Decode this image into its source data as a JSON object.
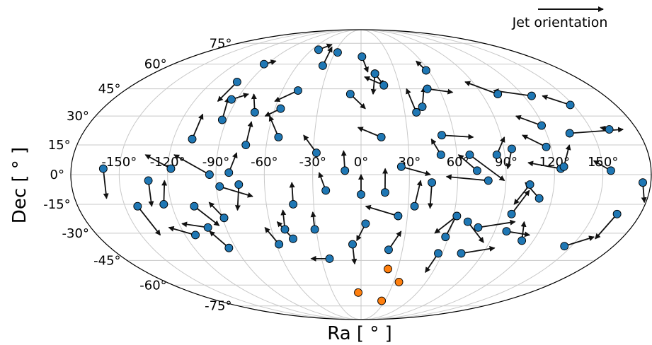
{
  "chart_data": {
    "type": "scatter",
    "projection": "mollweide",
    "xlabel": "Ra [ ° ]",
    "ylabel": "Dec [ ° ]",
    "x_ticks": [
      "-150°",
      "-120°",
      "-90°",
      "-60°",
      "-30°",
      "0°",
      "30°",
      "60°",
      "90°",
      "120°",
      "150°"
    ],
    "y_ticks": [
      "75°",
      "60°",
      "45°",
      "30°",
      "15°",
      "0°",
      "-15°",
      "-30°",
      "-45°",
      "-60°",
      "-75°"
    ],
    "grid": true,
    "legend": {
      "label": "Jet orientation",
      "placement": "top-right"
    },
    "colors": {
      "blue": "#1f77b4",
      "orange": "#ff7f0e",
      "arrow": "#111111",
      "grid": "#c8c8c8"
    },
    "sources_with_jet": [
      {
        "ra": -160,
        "dec": 3,
        "jet": [
          -160,
          -12
        ]
      },
      {
        "ra": -142,
        "dec": -16,
        "jet": [
          -137,
          -31
        ]
      },
      {
        "ra": -132,
        "dec": -3,
        "jet": [
          -133,
          -16
        ]
      },
      {
        "ra": -125,
        "dec": -15,
        "jet": [
          -122,
          -3
        ]
      },
      {
        "ra": -118,
        "dec": 3,
        "jet": [
          -135,
          10
        ]
      },
      {
        "ra": -113,
        "dec": -31,
        "jet": [
          -128,
          -27
        ]
      },
      {
        "ra": -106,
        "dec": -16,
        "jet": [
          -94,
          -26
        ]
      },
      {
        "ra": -102,
        "dec": -27,
        "jet": [
          -118,
          -25
        ]
      },
      {
        "ra": -95,
        "dec": -38,
        "jet": [
          -102,
          -29
        ]
      },
      {
        "ra": -94,
        "dec": 0,
        "jet": [
          -117,
          10
        ]
      },
      {
        "ra": -108,
        "dec": 18,
        "jet": [
          -108,
          31
        ]
      },
      {
        "ra": -93,
        "dec": 28,
        "jet": [
          -97,
          40
        ]
      },
      {
        "ra": -100,
        "dec": 49,
        "jet": [
          -103,
          38
        ]
      },
      {
        "ra": -93,
        "dec": 60,
        "jet": [
          -85,
          62
        ]
      },
      {
        "ra": -94,
        "dec": 39,
        "jet": [
          -84,
          42
        ]
      },
      {
        "ra": -73,
        "dec": 32,
        "jet": [
          -80,
          42
        ]
      },
      {
        "ra": -82,
        "dec": 1,
        "jet": [
          -78,
          11
        ]
      },
      {
        "ra": -73,
        "dec": 15,
        "jet": [
          -73,
          27
        ]
      },
      {
        "ra": -88,
        "dec": -6,
        "jet": [
          -68,
          -11
        ]
      },
      {
        "ra": -76,
        "dec": -5,
        "jet": [
          -79,
          -18
        ]
      },
      {
        "ra": -89,
        "dec": -22,
        "jet": [
          -96,
          -14
        ]
      },
      {
        "ra": -58,
        "dec": -36,
        "jet": [
          -64,
          -27
        ]
      },
      {
        "ra": -51,
        "dec": -28,
        "jet": [
          -50,
          -18
        ]
      },
      {
        "ra": -47,
        "dec": -33,
        "jet": [
          -55,
          -24
        ]
      },
      {
        "ra": -53,
        "dec": 19,
        "jet": [
          -62,
          30
        ]
      },
      {
        "ra": -48,
        "dec": 44,
        "jet": [
          -62,
          38
        ]
      },
      {
        "ra": -56,
        "dec": 34,
        "jet": [
          -65,
          30
        ]
      },
      {
        "ra": -36,
        "dec": 59,
        "jet": [
          -38,
          72
        ]
      },
      {
        "ra": -52,
        "dec": 70,
        "jet": [
          -41,
          74
        ]
      },
      {
        "ra": -27,
        "dec": 68,
        "jet": [
          -28,
          66
        ]
      },
      {
        "ra": -28,
        "dec": 11,
        "jet": [
          -37,
          20
        ]
      },
      {
        "ra": -43,
        "dec": -15,
        "jet": [
          -43,
          -4
        ]
      },
      {
        "ra": -22,
        "dec": -8,
        "jet": [
          -26,
          1
        ]
      },
      {
        "ra": -24,
        "dec": -44,
        "jet": [
          -38,
          -44
        ]
      },
      {
        "ra": -31,
        "dec": -28,
        "jet": [
          -31,
          -19
        ]
      },
      {
        "ra": -10,
        "dec": 2,
        "jet": [
          -11,
          12
        ]
      },
      {
        "ra": -8,
        "dec": 42,
        "jet": [
          3,
          34
        ]
      },
      {
        "ra": 13,
        "dec": 19,
        "jet": [
          -2,
          24
        ]
      },
      {
        "ra": 1,
        "dec": 65,
        "jet": [
          6,
          55
        ]
      },
      {
        "ra": 0,
        "dec": -10,
        "jet": [
          0,
          0
        ]
      },
      {
        "ra": 12,
        "dec": 54,
        "jet": [
          18,
          47
        ]
      },
      {
        "ra": 18,
        "dec": 47,
        "jet": [
          3,
          52
        ]
      },
      {
        "ra": 12,
        "dec": 54,
        "jet": [
          9,
          42
        ]
      },
      {
        "ra": 3,
        "dec": -25,
        "jet": [
          -3,
          -34
        ]
      },
      {
        "ra": 20,
        "dec": -39,
        "jet": [
          27,
          -29
        ]
      },
      {
        "ra": 24,
        "dec": -21,
        "jet": [
          3,
          -16
        ]
      },
      {
        "ra": 15,
        "dec": -9,
        "jet": [
          15,
          3
        ]
      },
      {
        "ra": 25,
        "dec": 4,
        "jet": [
          43,
          0
        ]
      },
      {
        "ra": 34,
        "dec": -16,
        "jet": [
          37,
          -3
        ]
      },
      {
        "ra": 38,
        "dec": 32,
        "jet": [
          35,
          45
        ]
      },
      {
        "ra": -6,
        "dec": -36,
        "jet": [
          -5,
          -47
        ]
      },
      {
        "ra": 44,
        "dec": -4,
        "jet": [
          44,
          -17
        ]
      },
      {
        "ra": 58,
        "dec": 56,
        "jet": [
          55,
          62
        ]
      },
      {
        "ra": 50,
        "dec": 10,
        "jet": [
          45,
          18
        ]
      },
      {
        "ra": 52,
        "dec": 20,
        "jet": [
          72,
          19
        ]
      },
      {
        "ra": 43,
        "dec": 35,
        "jet": [
          49,
          46
        ]
      },
      {
        "ra": 51,
        "dec": 45,
        "jet": [
          69,
          43
        ]
      },
      {
        "ra": 72,
        "dec": 2,
        "jet": [
          61,
          10
        ]
      },
      {
        "ra": 79,
        "dec": -3,
        "jet": [
          53,
          -1
        ]
      },
      {
        "ra": 68,
        "dec": 10,
        "jet": [
          89,
          -3
        ]
      },
      {
        "ra": 95,
        "dec": 13,
        "jet": [
          91,
          3
        ]
      },
      {
        "ra": 85,
        "dec": 10,
        "jet": [
          92,
          19
        ]
      },
      {
        "ra": 102,
        "dec": 42,
        "jet": [
          84,
          49
        ]
      },
      {
        "ra": 126,
        "dec": 41,
        "jet": [
          101,
          44
        ]
      },
      {
        "ra": 119,
        "dec": 25,
        "jet": [
          105,
          30
        ]
      },
      {
        "ra": 117,
        "dec": 14,
        "jet": [
          104,
          20
        ]
      },
      {
        "ra": 124,
        "dec": 3,
        "jet": [
          104,
          6
        ]
      },
      {
        "ra": 126,
        "dec": 4,
        "jet": [
          132,
          15
        ]
      },
      {
        "ra": 148,
        "dec": 36,
        "jet": [
          134,
          41
        ]
      },
      {
        "ra": 135,
        "dec": 21,
        "jet": [
          171,
          23
        ]
      },
      {
        "ra": 162,
        "dec": 23,
        "jet": [
          157,
          24
        ]
      },
      {
        "ra": 155,
        "dec": 2,
        "jet": [
          145,
          7
        ]
      },
      {
        "ra": 175,
        "dec": -4,
        "jet": [
          179,
          -14
        ]
      },
      {
        "ra": 165,
        "dec": -20,
        "jet": [
          162,
          -33
        ]
      },
      {
        "ra": 145,
        "dec": -37,
        "jet": [
          160,
          -32
        ]
      },
      {
        "ra": 105,
        "dec": -5,
        "jet": [
          97,
          -15
        ]
      },
      {
        "ra": 112,
        "dec": -12,
        "jet": [
          102,
          -4
        ]
      },
      {
        "ra": 97,
        "dec": -20,
        "jet": [
          105,
          -8
        ]
      },
      {
        "ra": 112,
        "dec": -34,
        "jet": [
          107,
          -24
        ]
      },
      {
        "ra": 98,
        "dec": -29,
        "jet": [
          115,
          -31
        ]
      },
      {
        "ra": 78,
        "dec": -27,
        "jet": [
          101,
          -24
        ]
      },
      {
        "ra": 70,
        "dec": -24,
        "jet": [
          86,
          -35
        ]
      },
      {
        "ra": 62,
        "dec": -21,
        "jet": [
          50,
          -30
        ]
      },
      {
        "ra": 58,
        "dec": -32,
        "jet": [
          62,
          -20
        ]
      },
      {
        "ra": 57,
        "dec": -41,
        "jet": [
          54,
          -52
        ]
      },
      {
        "ra": 74,
        "dec": -41,
        "jet": [
          96,
          -38
        ]
      }
    ],
    "sources_no_jet": [
      {
        "ra": 22,
        "dec": -50
      },
      {
        "ra": 35,
        "dec": -58
      },
      {
        "ra": -3,
        "dec": -65
      },
      {
        "ra": 26,
        "dec": -71
      }
    ]
  }
}
